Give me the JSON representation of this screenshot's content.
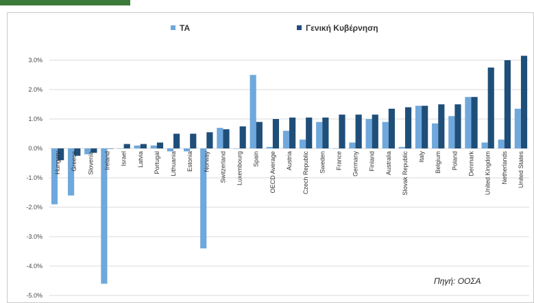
{
  "chart_data": {
    "type": "bar",
    "title": "",
    "source_note": "Πηγή: ΟΟΣΑ",
    "ylim": [
      -5,
      3.5
    ],
    "yticks": [
      -5,
      -4,
      -3,
      -2,
      -1,
      0,
      1,
      2,
      3
    ],
    "ytick_labels": [
      "-5.0%",
      "-4.0%",
      "-3.0%",
      "-2.0%",
      "-1.0%",
      "0.0%",
      "1.0%",
      "2.0%",
      "3.0%"
    ],
    "grid": true,
    "legend_position": "top",
    "categories": [
      "Hungary",
      "Greece",
      "Slovenia",
      "Ireland",
      "Israel",
      "Latvia",
      "Portugal",
      "Lithuania",
      "Estonia",
      "Norway",
      "Switzerland",
      "Luxembourg",
      "Spain",
      "OECD Average",
      "Austria",
      "Czech Republic",
      "Sweden",
      "France",
      "Germany",
      "Finland",
      "Australia",
      "Slovak Republic",
      "Italy",
      "Belgium",
      "Poland",
      "Denmark",
      "United Kingdom",
      "Netherlands",
      "United States"
    ],
    "series": [
      {
        "name": "TA",
        "color": "#6fa8dc",
        "values": [
          -1.9,
          -1.6,
          -0.2,
          -4.6,
          0.0,
          0.1,
          0.1,
          -0.1,
          -0.1,
          -3.4,
          0.7,
          0.0,
          2.5,
          0.05,
          0.6,
          0.3,
          0.9,
          0.0,
          0.2,
          1.0,
          0.9,
          0.05,
          1.45,
          0.85,
          1.1,
          1.75,
          0.2,
          0.3,
          1.35
        ]
      },
      {
        "name": "Γενική Κυβέρνηση",
        "color": "#1f4e79",
        "values": [
          -0.4,
          -0.25,
          -0.15,
          0.0,
          0.15,
          0.15,
          0.2,
          0.5,
          0.5,
          0.55,
          0.65,
          0.75,
          0.9,
          1.0,
          1.05,
          1.05,
          1.05,
          1.15,
          1.15,
          1.15,
          1.35,
          1.4,
          1.45,
          1.5,
          1.5,
          1.75,
          2.75,
          3.0,
          3.15
        ]
      }
    ]
  }
}
